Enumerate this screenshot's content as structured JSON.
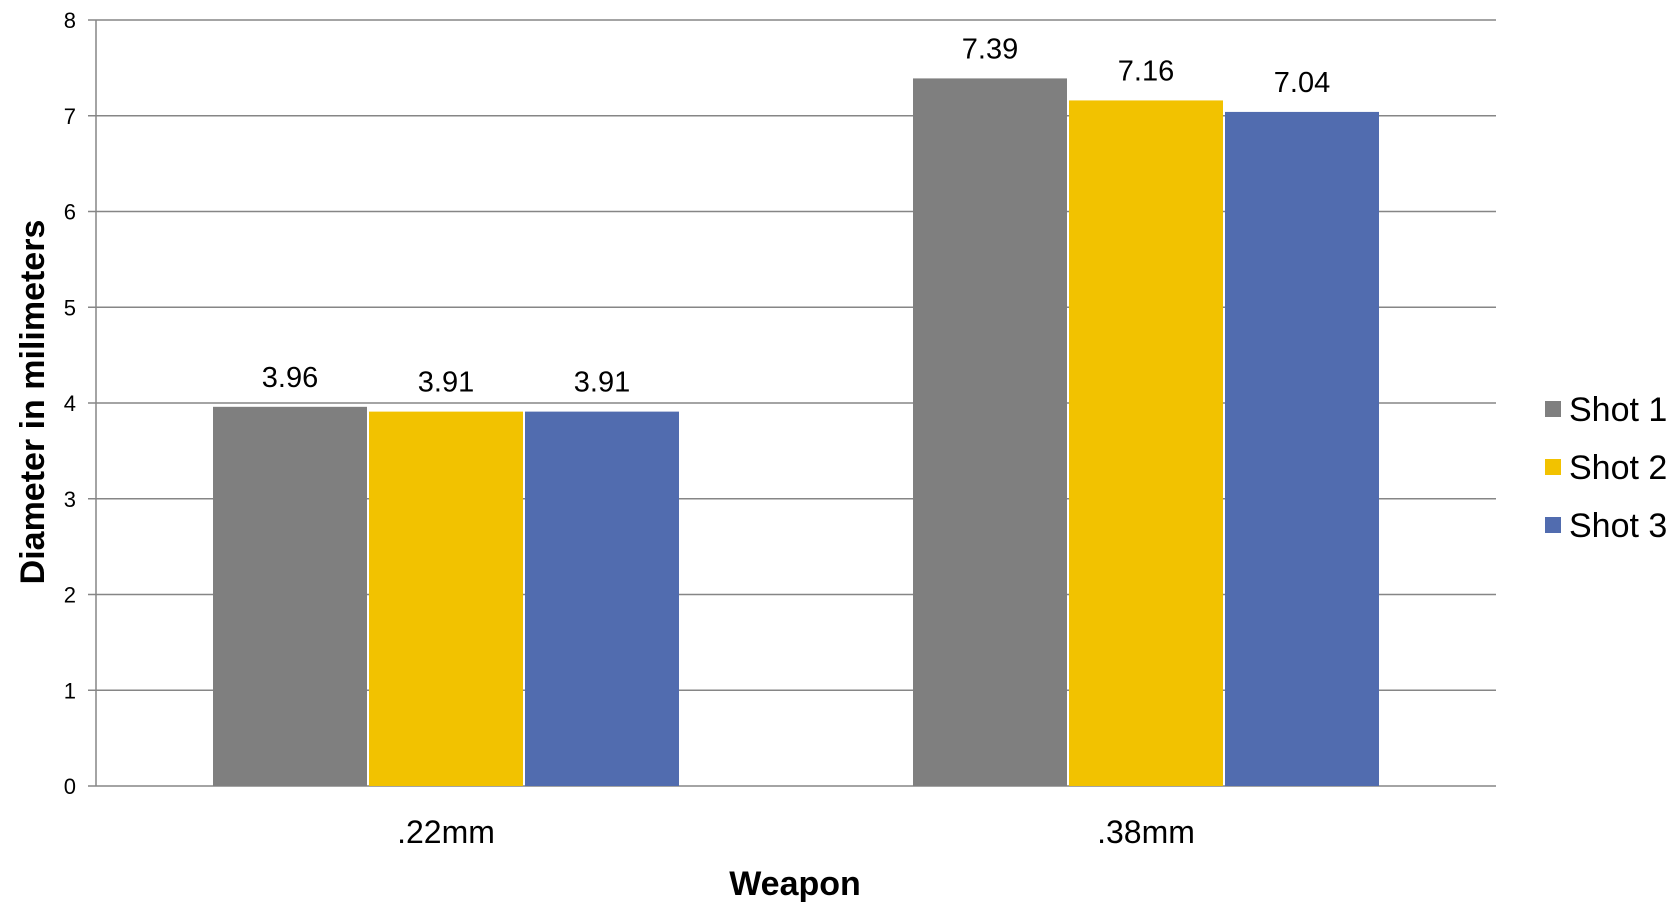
{
  "chart_data": {
    "type": "bar",
    "title": "",
    "xlabel": "Weapon",
    "ylabel": "Diameter in milimeters",
    "categories": [
      ".22mm",
      ".38mm"
    ],
    "series": [
      {
        "name": "Shot 1",
        "color": "#7f7f7f",
        "values": [
          3.96,
          7.39
        ],
        "labels": [
          "3.96",
          "7.39"
        ]
      },
      {
        "name": "Shot 2",
        "color": "#f2c200",
        "values": [
          3.91,
          7.16
        ],
        "labels": [
          "3.91",
          "7.16"
        ]
      },
      {
        "name": "Shot 3",
        "color": "#516caf",
        "values": [
          3.91,
          7.04
        ],
        "labels": [
          "3.91",
          "7.04"
        ]
      }
    ],
    "ylim": [
      0,
      8
    ],
    "yticks": [
      0,
      1,
      2,
      3,
      4,
      5,
      6,
      7,
      8
    ],
    "ytick_labels": [
      "0",
      "1",
      "2",
      "3",
      "4",
      "5",
      "6",
      "7",
      "8"
    ],
    "grid": true,
    "legend_position": "right"
  }
}
